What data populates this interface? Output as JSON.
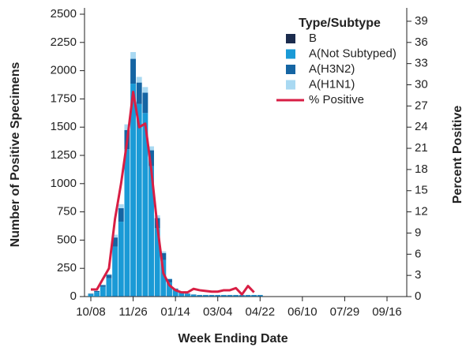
{
  "chart_data": {
    "type": "bar",
    "stacked": true,
    "xlabel": "Week Ending Date",
    "ylabel": "Number of Positive Specimens",
    "y2label": "Percent Positive",
    "legend_title": "Type/Subtype",
    "legend": "upper right",
    "categories": [
      "10/08",
      null,
      null,
      null,
      null,
      null,
      null,
      "11/26",
      null,
      null,
      null,
      null,
      null,
      null,
      "01/14",
      null,
      null,
      null,
      null,
      null,
      null,
      "03/04",
      null,
      null,
      null,
      null,
      null,
      null,
      "04/22",
      null,
      null,
      null,
      null,
      null,
      null,
      "06/10",
      null,
      null,
      null,
      null,
      null,
      null,
      "07/29",
      null,
      null,
      null,
      null,
      null,
      null,
      "09/16",
      null,
      null
    ],
    "series": [
      {
        "name": "B",
        "color": "#1b2b4d",
        "values": [
          1,
          1,
          1,
          2,
          3,
          3,
          5,
          5,
          5,
          5,
          5,
          5,
          5,
          4,
          4,
          4,
          4,
          3,
          3,
          3,
          3,
          3,
          3,
          3,
          3,
          3,
          3,
          3,
          3,
          0,
          0,
          0,
          0,
          0,
          0,
          0,
          0,
          0,
          0,
          0,
          0,
          0,
          0,
          0,
          0,
          0,
          0,
          0,
          0,
          0,
          0,
          0
        ]
      },
      {
        "name": "A(Not Subtyped)",
        "color": "#1a9ad6",
        "values": [
          20,
          40,
          85,
          160,
          440,
          660,
          1300,
          1880,
          1700,
          1620,
          1150,
          600,
          320,
          120,
          50,
          25,
          18,
          12,
          8,
          8,
          8,
          8,
          8,
          8,
          8,
          8,
          8,
          8,
          8,
          0,
          0,
          0,
          0,
          0,
          0,
          0,
          0,
          0,
          0,
          0,
          0,
          0,
          0,
          0,
          0,
          0,
          0,
          0,
          0,
          0,
          0,
          0
        ]
      },
      {
        "name": "A(H3N2)",
        "color": "#1565a3",
        "values": [
          5,
          8,
          15,
          30,
          80,
          120,
          170,
          220,
          190,
          180,
          140,
          90,
          60,
          30,
          15,
          8,
          5,
          4,
          3,
          3,
          3,
          3,
          3,
          3,
          3,
          3,
          3,
          3,
          3,
          0,
          0,
          0,
          0,
          0,
          0,
          0,
          0,
          0,
          0,
          0,
          0,
          0,
          0,
          0,
          0,
          0,
          0,
          0,
          0,
          0,
          0,
          0
        ]
      },
      {
        "name": "A(H1N1)",
        "color": "#a9d9f2",
        "values": [
          2,
          3,
          5,
          8,
          25,
          35,
          50,
          60,
          50,
          50,
          35,
          25,
          15,
          8,
          5,
          3,
          2,
          1,
          1,
          1,
          1,
          1,
          1,
          1,
          1,
          1,
          1,
          1,
          1,
          0,
          0,
          0,
          0,
          0,
          0,
          0,
          0,
          0,
          0,
          0,
          0,
          0,
          0,
          0,
          0,
          0,
          0,
          0,
          0,
          0,
          0,
          0
        ]
      },
      {
        "name": "% Positive",
        "type": "line",
        "axis": "y2",
        "color": "#d81e44",
        "values": [
          1,
          1,
          2.5,
          4,
          11,
          16,
          22,
          29,
          24,
          24.5,
          18,
          10,
          3.3,
          1.6,
          0.9,
          0.6,
          0.6,
          1.1,
          0.9,
          0.8,
          0.7,
          0.7,
          0.9,
          0.9,
          1.2,
          0.3,
          1.5,
          0.6,
          null,
          null,
          null,
          null,
          null,
          null,
          null,
          null,
          null,
          null,
          null,
          null,
          null,
          null,
          null,
          null,
          null,
          null,
          null,
          null,
          null,
          null,
          null,
          null
        ]
      }
    ],
    "ylim": [
      0,
      2500
    ],
    "yticks": [
      0,
      250,
      500,
      750,
      1000,
      1250,
      1500,
      1750,
      2000,
      2250,
      2500
    ],
    "y2lim": [
      0,
      40
    ],
    "y2ticks": [
      0,
      3,
      6,
      9,
      12,
      15,
      18,
      21,
      24,
      27,
      30,
      33,
      36,
      39
    ]
  }
}
